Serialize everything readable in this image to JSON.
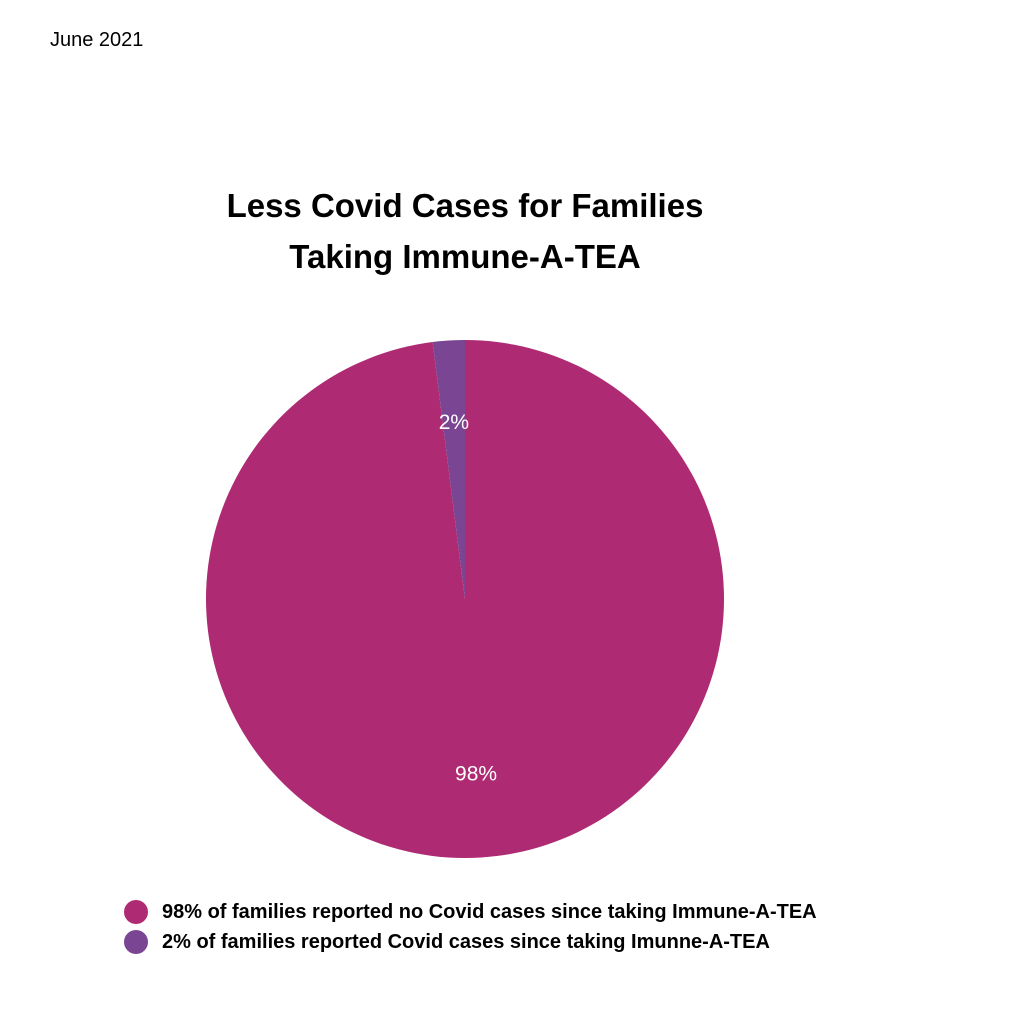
{
  "header": {
    "date": "June 2021"
  },
  "chart_data": {
    "type": "pie",
    "title": "Less Covid Cases for Families Taking Immune-A-TEA",
    "categories": [
      "98% of families reported no Covid cases since taking Immune-A-TEA",
      "2% of families reported Covid cases since taking Imunne-A-TEA"
    ],
    "values": [
      98,
      2
    ],
    "data_labels": [
      "98%",
      "2%"
    ],
    "colors": [
      "#ae2b73",
      "#7a4593"
    ],
    "legend_position": "bottom"
  }
}
